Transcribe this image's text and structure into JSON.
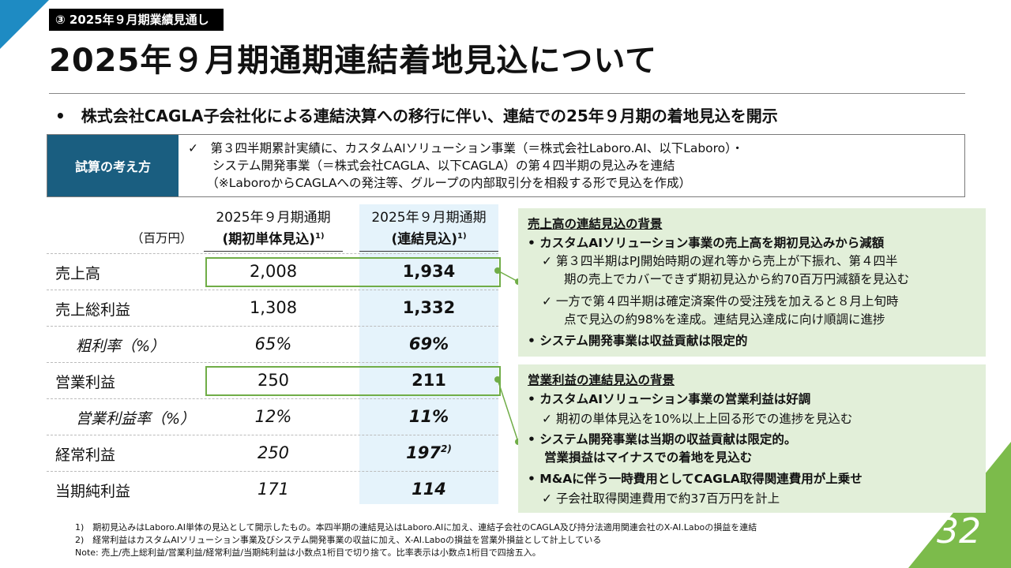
{
  "section_tag": "③ 2025年９月期業績見通し",
  "title": "2025年９月期通期連結着地見込について",
  "main_bullet": "•　株式会社CAGLA子会社化による連結決算への移行に伴い、連結での25年９月期の着地見込を開示",
  "method": {
    "label": "試算の考え方",
    "lines": [
      "✓　第３四半期累計実績に、カスタムAIソリューション事業（＝株式会社Laboro.AI、以下Laboro）・",
      "　　システム開発事業（＝株式会社CAGLA、以下CAGLA）の第４四半期の見込みを連結",
      "　　（※LaboroからCAGLAへの発注等、グループの内部取引分を相殺する形で見込を作成）"
    ]
  },
  "table": {
    "unit": "（百万円）",
    "col1_line1": "2025年９月期通期",
    "col1_line2": "(期初単体見込)",
    "col1_sup": "1)",
    "col2_line1": "2025年９月期通期",
    "col2_line2": "(連結見込)",
    "col2_sup": "1)",
    "rows": [
      {
        "label": "売上高",
        "v1": "2,008",
        "v2": "1,934"
      },
      {
        "label": "売上総利益",
        "v1": "1,308",
        "v2": "1,332"
      },
      {
        "label": "粗利率（%）",
        "v1": "65%",
        "v2": "69%"
      },
      {
        "label": "営業利益",
        "v1": "250",
        "v2": "211"
      },
      {
        "label": "営業利益率（%）",
        "v1": "12%",
        "v2": "11%"
      },
      {
        "label": "経常利益",
        "v1": "250",
        "v2": "197",
        "v2_sup": "2)"
      },
      {
        "label": "当期純利益",
        "v1": "171",
        "v2": "114"
      }
    ]
  },
  "callout1": {
    "heading": "売上高の連結見込の背景",
    "lines": [
      "•  カスタムAIソリューション事業の売上高を期初見込みから減額",
      "✓  第３四半期はPJ開始時期の遅れ等から売上が下振れ、第４四半",
      "期の売上でカバーできず期初見込から約70百万円減額を見込む",
      "✓  一方で第４四半期は確定済案件の受注残を加えると８月上旬時",
      "点で見込の約98%を達成。連結見込達成に向け順調に進捗",
      "•  システム開発事業は収益貢献は限定的"
    ]
  },
  "callout2": {
    "heading": "営業利益の連結見込の背景",
    "lines": [
      "•  カスタムAIソリューション事業の営業利益は好調",
      "✓  期初の単体見込を10%以上上回る形での進捗を見込む",
      "•  システム開発事業は当期の収益貢献は限定的。",
      "営業損益はマイナスでの着地を見込む",
      "•  M&Aに伴う一時費用としてCAGLA取得関連費用が上乗せ",
      "✓  子会社取得関連費用で約37百万円を計上"
    ]
  },
  "footnotes": [
    "1)　期初見込みはLaboro.AI単体の見込として開示したもの。本四半期の連結見込はLaboro.AIに加え、連結子会社のCAGLA及び持分法適用関連会社のX-AI.Laboの損益を連結",
    "2)　経常利益はカスタムAIソリューション事業及びシステム開発事業の収益に加え、X-AI.Laboの損益を営業外損益として計上している",
    "Note: 売上/売上総利益/営業利益/経常利益/当期純利益は小数点1桁目で切り捨て。比率表示は小数点1桁目で四捨五入。"
  ],
  "page_number": "32",
  "colors": {
    "accent_blue": "#1e8bc3",
    "label_navy": "#1a5e80",
    "green": "#70ad47",
    "callout_bg": "#e2efd9",
    "col_highlight": "#e5f3fb"
  }
}
